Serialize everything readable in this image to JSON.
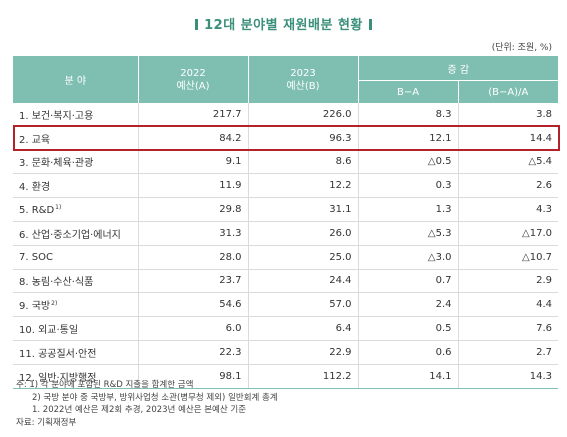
{
  "title": "12대 분야별 재원배분 현황",
  "unit": "(단위: 조원, %)",
  "table": {
    "header": {
      "field": "분 야",
      "y2022": "2022",
      "y2022_sub": "예산(A)",
      "y2023": "2023",
      "y2023_sub": "예산(B)",
      "change": "증 감",
      "diff": "B−A",
      "ratio": "(B−A)/A"
    },
    "rows": [
      {
        "name": "1. 보건·복지·고용",
        "note": "",
        "a": "217.7",
        "b": "226.0",
        "diff": "8.3",
        "ratio": "3.8"
      },
      {
        "name": "2. 교육",
        "note": "",
        "a": "84.2",
        "b": "96.3",
        "diff": "12.1",
        "ratio": "14.4"
      },
      {
        "name": "3. 문화·체육·관광",
        "note": "",
        "a": "9.1",
        "b": "8.6",
        "diff": "△0.5",
        "ratio": "△5.4"
      },
      {
        "name": "4. 환경",
        "note": "",
        "a": "11.9",
        "b": "12.2",
        "diff": "0.3",
        "ratio": "2.6"
      },
      {
        "name": "5. R&D",
        "note": "1)",
        "a": "29.8",
        "b": "31.1",
        "diff": "1.3",
        "ratio": "4.3"
      },
      {
        "name": "6. 산업·중소기업·에너지",
        "note": "",
        "a": "31.3",
        "b": "26.0",
        "diff": "△5.3",
        "ratio": "△17.0"
      },
      {
        "name": "7. SOC",
        "note": "",
        "a": "28.0",
        "b": "25.0",
        "diff": "△3.0",
        "ratio": "△10.7"
      },
      {
        "name": "8. 농림·수산·식품",
        "note": "",
        "a": "23.7",
        "b": "24.4",
        "diff": "0.7",
        "ratio": "2.9"
      },
      {
        "name": "9. 국방",
        "note": "2)",
        "a": "54.6",
        "b": "57.0",
        "diff": "2.4",
        "ratio": "4.4"
      },
      {
        "name": "10. 외교·통일",
        "note": "",
        "a": "6.0",
        "b": "6.4",
        "diff": "0.5",
        "ratio": "7.6"
      },
      {
        "name": "11. 공공질서·안전",
        "note": "",
        "a": "22.3",
        "b": "22.9",
        "diff": "0.6",
        "ratio": "2.7"
      },
      {
        "name": "12. 일반·지방행정",
        "note": "",
        "a": "98.1",
        "b": "112.2",
        "diff": "14.1",
        "ratio": "14.3"
      }
    ]
  },
  "highlight_color": "#b3212a",
  "header_color": "#7fbfb2",
  "notes": [
    "주: 1) 각 분야에 포함된 R&D 지출을 합계한 금액",
    "2) 국방 분야 중 국방부, 방위사업청 소관(병무청 제외) 일반회계 총계",
    "1. 2022년 예산은 제2회 추경, 2023년 예산은 본예산 기준",
    "자료: 기획재정부"
  ]
}
